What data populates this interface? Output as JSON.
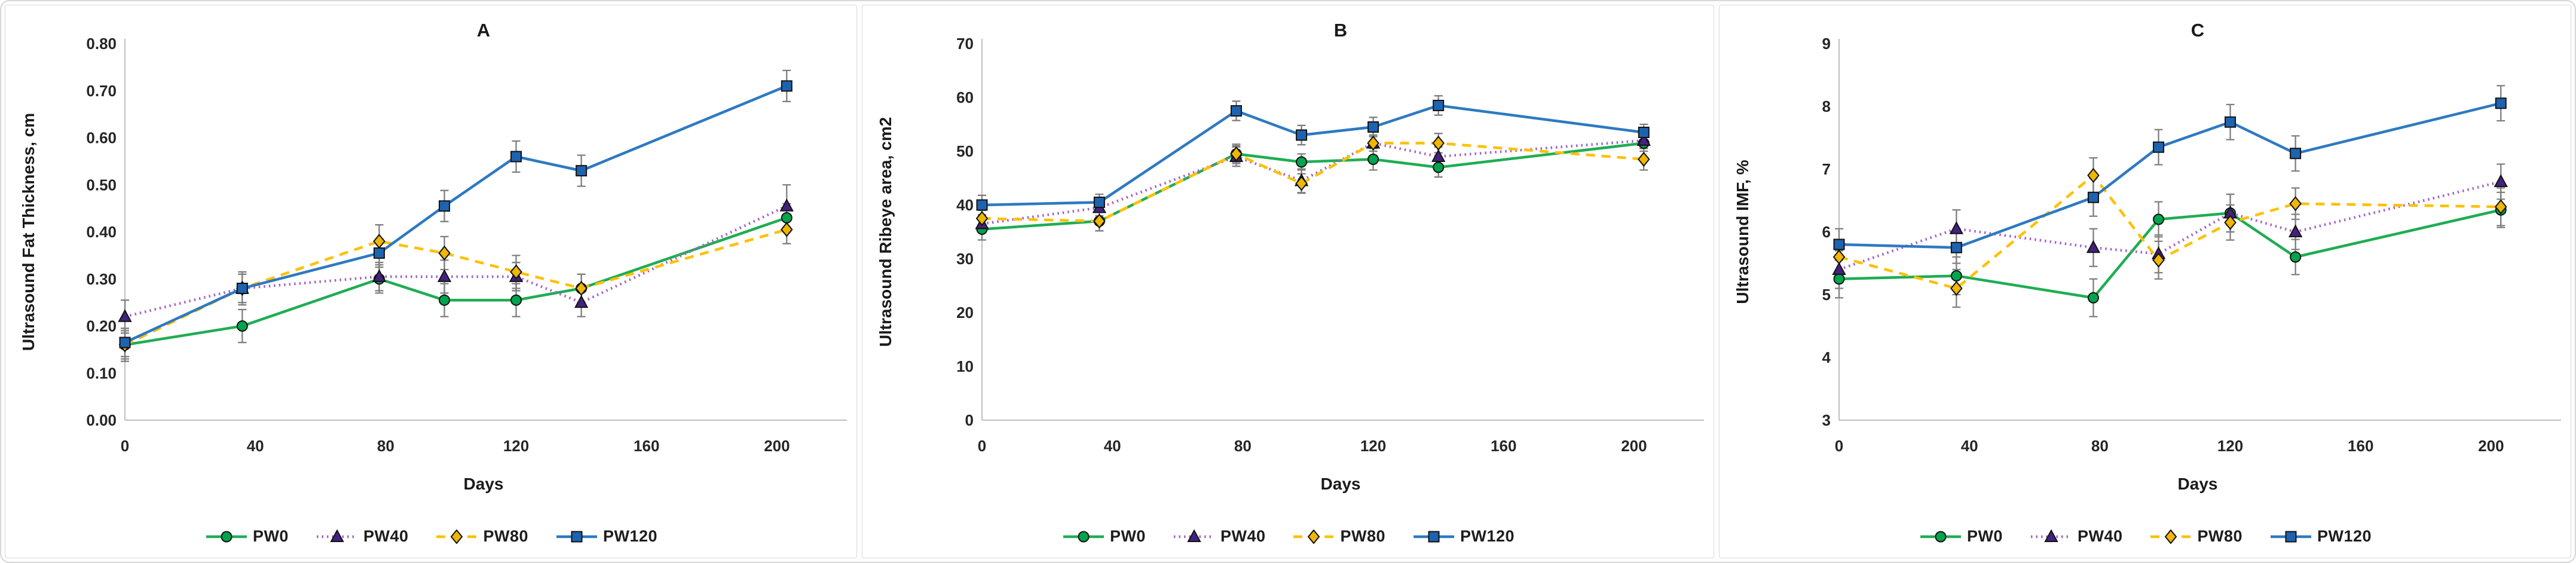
{
  "figure": {
    "description_labels": {
      "xlabel": "Days"
    },
    "legend_labels": [
      "PW0",
      "PW40",
      "PW80",
      "PW120"
    ]
  },
  "styles": {
    "accent_green": "#1FAD53",
    "accent_purple_line": "#A262C9",
    "accent_gold": "#FFC000",
    "accent_blue": "#2E79C2",
    "marker_green_fill": "#00A44E",
    "marker_purple_fill": "#44217E",
    "marker_gold_fill": "#EFB700",
    "marker_blue_fill": "#1E63B0",
    "marker_stroke": "#121212",
    "error_bar_color": "#7F7F7F",
    "axis_color": "#BFBFBF",
    "text_color": "#262626"
  },
  "series_styles": [
    {
      "name": "PW0",
      "line_color": "#1FAD53",
      "dash": "solid",
      "marker": "circle",
      "marker_fill": "#00A44E"
    },
    {
      "name": "PW40",
      "line_color": "#A262C9",
      "dash": "dotted",
      "marker": "triangle",
      "marker_fill": "#44217E"
    },
    {
      "name": "PW80",
      "line_color": "#FFC000",
      "dash": "dashed",
      "marker": "diamond",
      "marker_fill": "#EFB700"
    },
    {
      "name": "PW120",
      "line_color": "#2E79C2",
      "dash": "solid",
      "marker": "square",
      "marker_fill": "#1E63B0"
    }
  ],
  "chart_data": [
    {
      "type": "line",
      "title": "A",
      "xlabel": "Days",
      "ylabel": "Ultrasound Fat Thickness, cm",
      "x": [
        0,
        36,
        78,
        98,
        120,
        140,
        203
      ],
      "xticks": [
        0,
        40,
        80,
        120,
        160,
        200
      ],
      "xtick_labels": [
        "0",
        "40",
        "80",
        "120",
        "160",
        "200"
      ],
      "xlim": [
        0,
        220
      ],
      "ylim": [
        0,
        0.8
      ],
      "ytick_labels": [
        "0.00",
        "0.10",
        "0.20",
        "0.30",
        "0.40",
        "0.50",
        "0.60",
        "0.70",
        "0.80"
      ],
      "grid": false,
      "legend_position": "bottom",
      "series": [
        {
          "name": "PW0",
          "values": [
            0.16,
            0.2,
            0.3,
            0.255,
            0.255,
            0.28,
            0.43
          ],
          "err": [
            0.035,
            0.035,
            0.03,
            0.035,
            0.035,
            0.03,
            0.03
          ]
        },
        {
          "name": "PW40",
          "values": [
            0.22,
            0.28,
            0.305,
            0.305,
            0.305,
            0.25,
            0.455
          ],
          "err": [
            0.035,
            0.03,
            0.03,
            0.035,
            0.03,
            0.03,
            0.045
          ]
        },
        {
          "name": "PW80",
          "values": [
            0.16,
            0.28,
            0.38,
            0.355,
            0.315,
            0.28,
            0.405
          ],
          "err": [
            0.03,
            0.03,
            0.035,
            0.035,
            0.035,
            0.03,
            0.03
          ]
        },
        {
          "name": "PW120",
          "values": [
            0.165,
            0.28,
            0.355,
            0.455,
            0.56,
            0.53,
            0.71
          ],
          "err": [
            0.03,
            0.035,
            0.03,
            0.033,
            0.033,
            0.033,
            0.033
          ]
        }
      ]
    },
    {
      "type": "line",
      "title": "B",
      "xlabel": "Days",
      "ylabel": "Ultrasound Ribeye area, cm2",
      "x": [
        0,
        36,
        78,
        98,
        120,
        140,
        203
      ],
      "xticks": [
        0,
        40,
        80,
        120,
        160,
        200
      ],
      "xtick_labels": [
        "0",
        "40",
        "80",
        "120",
        "160",
        "200"
      ],
      "xlim": [
        0,
        220
      ],
      "ylim": [
        0,
        70
      ],
      "ytick_labels": [
        "0",
        "10",
        "20",
        "30",
        "40",
        "50",
        "60",
        "70"
      ],
      "grid": false,
      "legend_position": "bottom",
      "series": [
        {
          "name": "PW0",
          "values": [
            35.5,
            37,
            49.5,
            48,
            48.5,
            47,
            51.5
          ],
          "err": [
            2,
            1.8,
            1.5,
            1.5,
            2,
            1.8,
            1.5
          ]
        },
        {
          "name": "PW40",
          "values": [
            36.5,
            39.5,
            49,
            44.5,
            51.5,
            49,
            52
          ],
          "err": [
            1.5,
            1.5,
            1.8,
            2.2,
            1.5,
            1.8,
            1.5
          ]
        },
        {
          "name": "PW80",
          "values": [
            37.5,
            37,
            49.5,
            44,
            51.5,
            51.5,
            48.5
          ],
          "err": [
            1.5,
            1.8,
            1.8,
            1.8,
            1.5,
            1.8,
            2
          ]
        },
        {
          "name": "PW120",
          "values": [
            40,
            40.5,
            57.5,
            53,
            54.5,
            58.5,
            53.5
          ],
          "err": [
            1.8,
            1.5,
            1.8,
            1.8,
            1.8,
            1.8,
            1.5
          ]
        }
      ]
    },
    {
      "type": "line",
      "title": "C",
      "xlabel": "Days",
      "ylabel": "Ultrasound IMF, %",
      "x": [
        0,
        36,
        78,
        98,
        120,
        140,
        203
      ],
      "xticks": [
        0,
        40,
        80,
        120,
        160,
        200
      ],
      "xtick_labels": [
        "0",
        "40",
        "80",
        "120",
        "160",
        "200"
      ],
      "xlim": [
        0,
        220
      ],
      "ylim": [
        3,
        9
      ],
      "ytick_labels": [
        "3",
        "4",
        "5",
        "6",
        "7",
        "8",
        "9"
      ],
      "grid": false,
      "legend_position": "bottom",
      "series": [
        {
          "name": "PW0",
          "values": [
            5.25,
            5.3,
            4.95,
            6.2,
            6.3,
            5.6,
            6.35
          ],
          "err": [
            0.3,
            0.3,
            0.3,
            0.28,
            0.3,
            0.28,
            0.28
          ]
        },
        {
          "name": "PW40",
          "values": [
            5.4,
            6.05,
            5.75,
            5.65,
            6.3,
            6.0,
            6.8
          ],
          "err": [
            0.3,
            0.3,
            0.3,
            0.3,
            0.3,
            0.28,
            0.28
          ]
        },
        {
          "name": "PW80",
          "values": [
            5.6,
            5.1,
            6.9,
            5.55,
            6.15,
            6.45,
            6.4
          ],
          "err": [
            0.25,
            0.3,
            0.28,
            0.3,
            0.28,
            0.25,
            0.3
          ]
        },
        {
          "name": "PW120",
          "values": [
            5.8,
            5.75,
            6.55,
            7.35,
            7.75,
            7.25,
            8.05
          ],
          "err": [
            0.25,
            0.25,
            0.3,
            0.28,
            0.28,
            0.28,
            0.28
          ]
        }
      ]
    }
  ]
}
